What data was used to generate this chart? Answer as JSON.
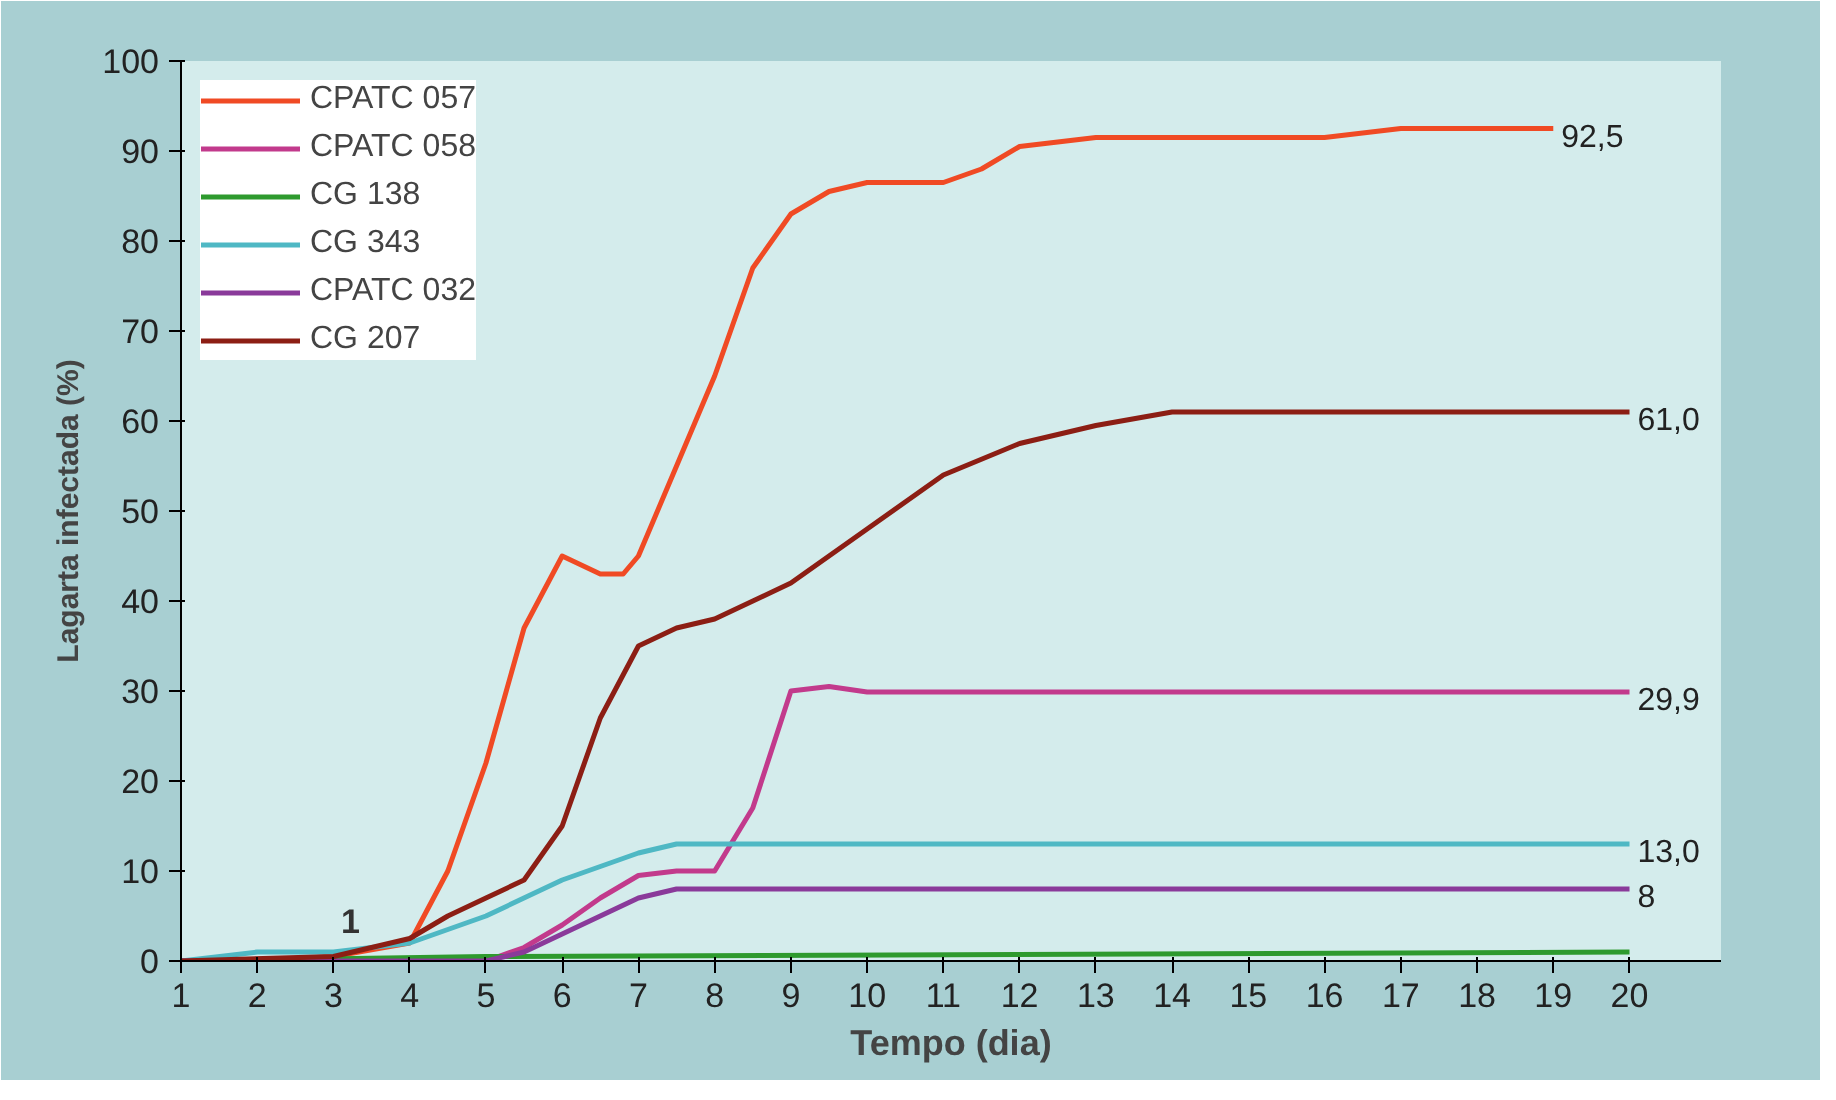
{
  "chart_data": {
    "type": "line",
    "xlabel": "Tempo (dia)",
    "ylabel": "Lagarta infectada (%)",
    "xlim": [
      1,
      21.2
    ],
    "xticks": [
      1,
      2,
      3,
      4,
      5,
      6,
      7,
      8,
      9,
      10,
      11,
      12,
      13,
      14,
      15,
      16,
      17,
      18,
      19,
      20
    ],
    "ylim": [
      0,
      100
    ],
    "yticks": [
      0,
      10,
      20,
      30,
      40,
      50,
      60,
      70,
      80,
      90,
      100
    ],
    "grid": false,
    "legend": "top left",
    "marker": "none",
    "line_style": "solid",
    "annotations": [
      "1"
    ],
    "series": [
      {
        "name": "CPATC 057",
        "color": "#f04a24",
        "x": [
          1,
          2,
          3,
          4,
          4.5,
          5,
          5.5,
          6,
          6.5,
          6.8,
          7,
          7.5,
          8,
          8.5,
          9,
          9.5,
          10,
          11,
          11.5,
          12,
          13,
          14,
          15,
          16,
          17,
          18,
          19
        ],
        "values": [
          0,
          0,
          0.5,
          2,
          10,
          22,
          37,
          45,
          43,
          43,
          45,
          55,
          65,
          77,
          83,
          85.5,
          86.5,
          86.5,
          88,
          90.5,
          91.5,
          91.5,
          91.5,
          91.5,
          92.5,
          92.5,
          92.5
        ],
        "value_labels": [
          null,
          null,
          null,
          null,
          null,
          null,
          null,
          null,
          null,
          null,
          null,
          null,
          null,
          null,
          null,
          null,
          null,
          null,
          null,
          null,
          null,
          null,
          null,
          null,
          null,
          null,
          "92,5"
        ]
      },
      {
        "name": "CPATC 058",
        "color": "#c23a8c",
        "x": [
          1,
          3,
          4,
          5,
          5.5,
          6,
          6.5,
          7,
          7.5,
          8,
          8.5,
          9,
          9.5,
          10,
          20
        ],
        "values": [
          0,
          0,
          0,
          0,
          1.5,
          4,
          7,
          9.5,
          10,
          10,
          17,
          30,
          30.5,
          29.9,
          29.9
        ],
        "value_labels": [
          null,
          null,
          null,
          null,
          null,
          null,
          null,
          null,
          null,
          null,
          null,
          null,
          null,
          null,
          "29,9"
        ]
      },
      {
        "name": "CG 138",
        "color": "#2e9a2e",
        "x": [
          1,
          5,
          20
        ],
        "values": [
          0,
          0.5,
          1
        ],
        "value_labels": [
          null,
          null,
          null
        ]
      },
      {
        "name": "CG 343",
        "color": "#4fb8c4",
        "x": [
          1,
          2,
          3,
          4,
          5,
          6,
          7,
          7.5,
          20
        ],
        "values": [
          0,
          1,
          1,
          2,
          5,
          9,
          12,
          13,
          13
        ],
        "value_labels": [
          null,
          null,
          null,
          null,
          null,
          null,
          null,
          null,
          "13,0"
        ]
      },
      {
        "name": "CPATC 032",
        "color": "#8a3a9a",
        "x": [
          1,
          4,
          5,
          5.5,
          6,
          6.5,
          7,
          7.5,
          20
        ],
        "values": [
          0,
          0,
          0,
          1,
          3,
          5,
          7,
          8,
          8
        ],
        "value_labels": [
          null,
          null,
          null,
          null,
          null,
          null,
          null,
          null,
          "8"
        ]
      },
      {
        "name": "CG 207",
        "color": "#8c1e14",
        "x": [
          1,
          3,
          4,
          4.5,
          5,
          5.5,
          6,
          6.5,
          7,
          7.5,
          8,
          9,
          10,
          11,
          12,
          13,
          14,
          20
        ],
        "values": [
          0,
          0.5,
          2.5,
          5,
          7,
          9,
          15,
          27,
          35,
          37,
          38,
          42,
          48,
          54,
          57.5,
          59.5,
          61,
          61
        ],
        "value_labels": [
          null,
          null,
          null,
          null,
          null,
          null,
          null,
          null,
          null,
          null,
          null,
          null,
          null,
          null,
          null,
          null,
          null,
          "61,0"
        ]
      }
    ]
  }
}
